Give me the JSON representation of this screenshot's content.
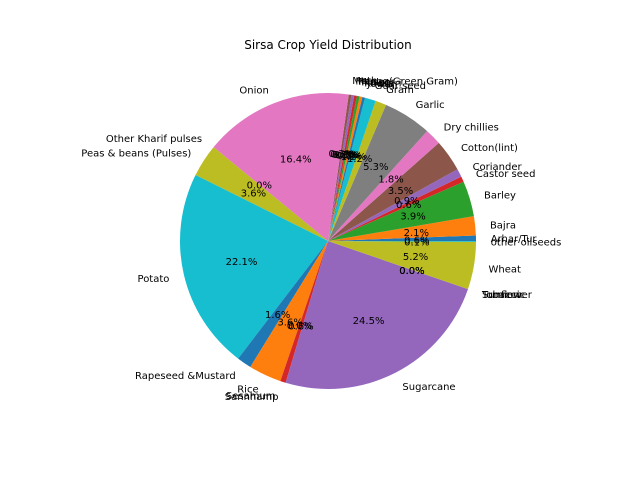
{
  "chart_data": {
    "type": "pie",
    "title": "Sirsa Crop Yield Distribution",
    "start_angle_deg": 0,
    "direction": "counterclockwise",
    "slices": [
      {
        "label": "Arhar/Tur",
        "value": 0.6,
        "pct": "0.6%",
        "color": "#1f77b4"
      },
      {
        "label": "Bajra",
        "value": 2.1,
        "pct": "2.1%",
        "color": "#ff7f0e"
      },
      {
        "label": "Barley",
        "value": 3.9,
        "pct": "3.9%",
        "color": "#2ca02c"
      },
      {
        "label": "Castor seed",
        "value": 0.6,
        "pct": "0.6%",
        "color": "#d62728"
      },
      {
        "label": "Coriander",
        "value": 0.9,
        "pct": "0.9%",
        "color": "#9467bd"
      },
      {
        "label": "Cotton(lint)",
        "value": 3.5,
        "pct": "3.5%",
        "color": "#8c564b"
      },
      {
        "label": "Dry chillies",
        "value": 1.8,
        "pct": "1.8%",
        "color": "#e377c2"
      },
      {
        "label": "Garlic",
        "value": 5.3,
        "pct": "5.3%",
        "color": "#7f7f7f"
      },
      {
        "label": "Gram",
        "value": 1.2,
        "pct": "1.2%",
        "color": "#bcbd22"
      },
      {
        "label": "Guar seed",
        "value": 1.2,
        "pct": "1.2%",
        "color": "#17becf"
      },
      {
        "label": "Jowar",
        "value": 0.3,
        "pct": "0.3%",
        "color": "#1f77b4"
      },
      {
        "label": "Khesari",
        "value": 0.3,
        "pct": "0.3%",
        "color": "#ff7f0e"
      },
      {
        "label": "Maize",
        "value": 0.3,
        "pct": "0.3%",
        "color": "#2ca02c"
      },
      {
        "label": "Masoor",
        "value": 0.3,
        "pct": "0.3%",
        "color": "#d62728"
      },
      {
        "label": "Moong(Green Gram)",
        "value": 0.3,
        "pct": "0.3%",
        "color": "#9467bd"
      },
      {
        "label": "Moth",
        "value": 0.3,
        "pct": "0.3%",
        "color": "#8c564b"
      },
      {
        "label": "Onion",
        "value": 16.4,
        "pct": "16.4%",
        "color": "#e377c2"
      },
      {
        "label": "Other Kharif pulses",
        "value": 0.0,
        "pct": "0.0%",
        "color": "#7f7f7f"
      },
      {
        "label": "Peas & beans (Pulses)",
        "value": 3.6,
        "pct": "3.6%",
        "color": "#bcbd22"
      },
      {
        "label": "Potato",
        "value": 22.1,
        "pct": "22.1%",
        "color": "#17becf"
      },
      {
        "label": "Rapeseed &Mustard",
        "value": 1.6,
        "pct": "1.6%",
        "color": "#1f77b4"
      },
      {
        "label": "Rice",
        "value": 3.6,
        "pct": "3.6%",
        "color": "#ff7f0e"
      },
      {
        "label": "Sesamum",
        "value": 0.0,
        "pct": "0.0%",
        "color": "#2ca02c"
      },
      {
        "label": "Sannhamp",
        "value": 0.6,
        "pct": "0.6%",
        "color": "#d62728"
      },
      {
        "label": "Sugarcane",
        "value": 24.5,
        "pct": "24.5%",
        "color": "#9467bd"
      },
      {
        "label": "Sunflower",
        "value": 0.0,
        "pct": "0.0%",
        "color": "#8c564b"
      },
      {
        "label": "Tobacco",
        "value": 0.0,
        "pct": "0.0%",
        "color": "#e377c2"
      },
      {
        "label": "Turmeric",
        "value": 0.0,
        "pct": "0.0%",
        "color": "#7f7f7f"
      },
      {
        "label": "Wheat",
        "value": 5.2,
        "pct": "5.2%",
        "color": "#bcbd22"
      },
      {
        "label": "other oilseeds",
        "value": 0.1,
        "pct": "0.1%",
        "color": "#17becf"
      }
    ]
  }
}
